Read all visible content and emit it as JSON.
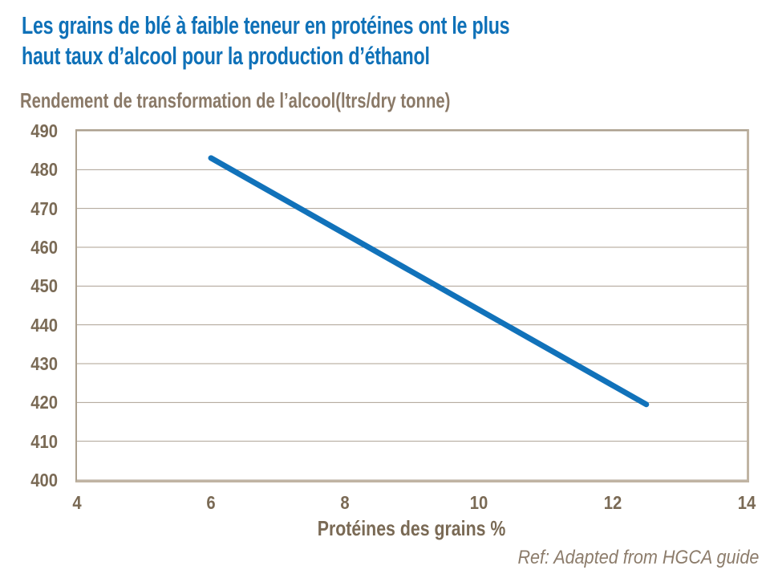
{
  "title": {
    "lines": [
      "Les grains de blé à faible teneur en protéines ont le plus",
      "haut taux d’alcool pour la production d’éthanol"
    ],
    "color": "#0F71B8"
  },
  "subtitle": {
    "text": "Rendement de transformation de l’alcool(ltrs/dry tonne)",
    "color": "#8A7967"
  },
  "footnote": {
    "text": "Ref: Adapted from HGCA guide",
    "color": "#8C7C6B"
  },
  "chart_data": {
    "type": "line",
    "title": "Rendement de transformation de l’alcool(ltrs/dry tonne)",
    "xlabel": "Protéines des grains %",
    "ylabel": "Rendement de transformation de l’alcool (ltrs/dry tonne)",
    "xlim": [
      4,
      14
    ],
    "ylim": [
      400,
      490
    ],
    "x_ticks": [
      4,
      6,
      8,
      10,
      12,
      14
    ],
    "y_ticks": [
      400,
      410,
      420,
      430,
      440,
      450,
      460,
      470,
      480,
      490
    ],
    "grid": "horizontal",
    "legend": "none",
    "series": [
      {
        "name": "Rendement de transformation de l’alcool",
        "color": "#1172BA",
        "points": [
          {
            "x": 6,
            "y": 483
          },
          {
            "x": 12.5,
            "y": 419.5
          }
        ]
      }
    ],
    "style": {
      "grid_color": "#ACA092",
      "border_color": "#ADA18F",
      "border_color_light": "#C0B4A3",
      "tick_label_color": "#7A6A55",
      "line_width": 7
    }
  }
}
